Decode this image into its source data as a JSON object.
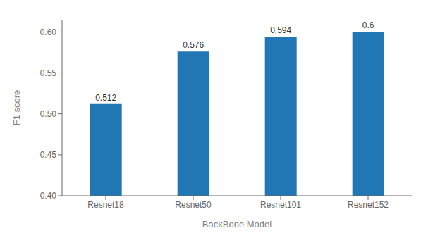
{
  "chart_data": {
    "type": "bar",
    "categories": [
      "Resnet18",
      "Resnet50",
      "Resnet101",
      "Resnet152"
    ],
    "values": [
      0.512,
      0.576,
      0.594,
      0.6
    ],
    "color": "#2077b4",
    "xlabel": "BackBone Model",
    "ylabel": "F1 score",
    "ylim": [
      0.4,
      0.615
    ],
    "yticks": [
      {
        "value": 0.4,
        "label": "0.40"
      },
      0.45,
      {
        "value": 0.5,
        "label": "0.50"
      },
      0.55,
      {
        "value": 0.6,
        "label": "0.60"
      }
    ],
    "grid": false,
    "data_labels": true
  }
}
